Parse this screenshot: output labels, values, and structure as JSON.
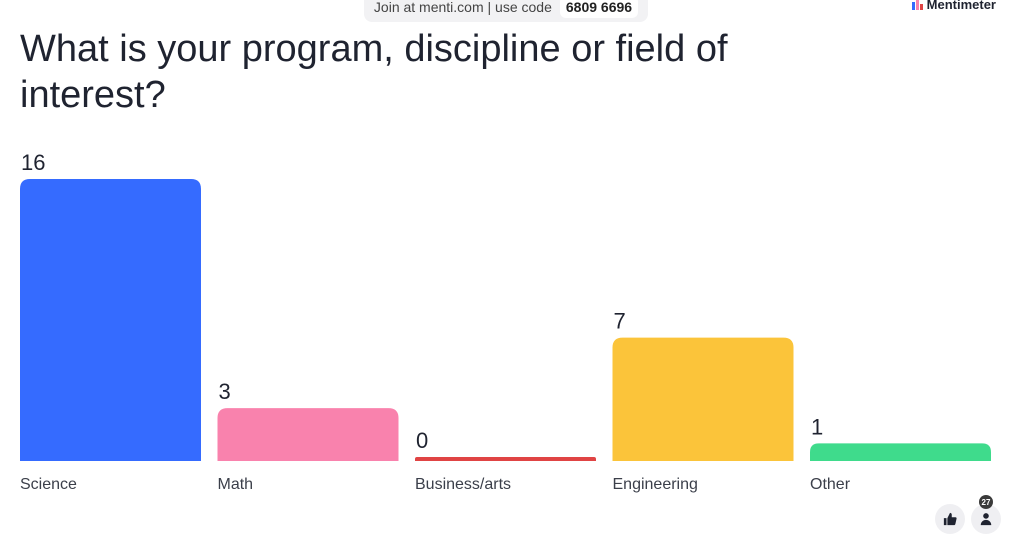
{
  "join_banner": {
    "text": "Join at menti.com | use code",
    "code": "6809 6696"
  },
  "brand": {
    "name": "Mentimeter",
    "logo_icon": "mentimeter-logo-icon"
  },
  "question": {
    "title": "What is your program, discipline or field of interest?"
  },
  "chart_data": {
    "type": "bar",
    "categories": [
      "Science",
      "Math",
      "Business/arts",
      "Engineering",
      "Other"
    ],
    "values": [
      16,
      3,
      0,
      7,
      1
    ],
    "colors": [
      "#356bff",
      "#f982ad",
      "#e04444",
      "#fbc43a",
      "#3fdb8c"
    ],
    "ylim": [
      0,
      16
    ],
    "grid": false,
    "legend": "none"
  },
  "controls": {
    "like_icon": "thumbs-up-icon",
    "participants_icon": "person-icon",
    "participant_count": "27"
  }
}
